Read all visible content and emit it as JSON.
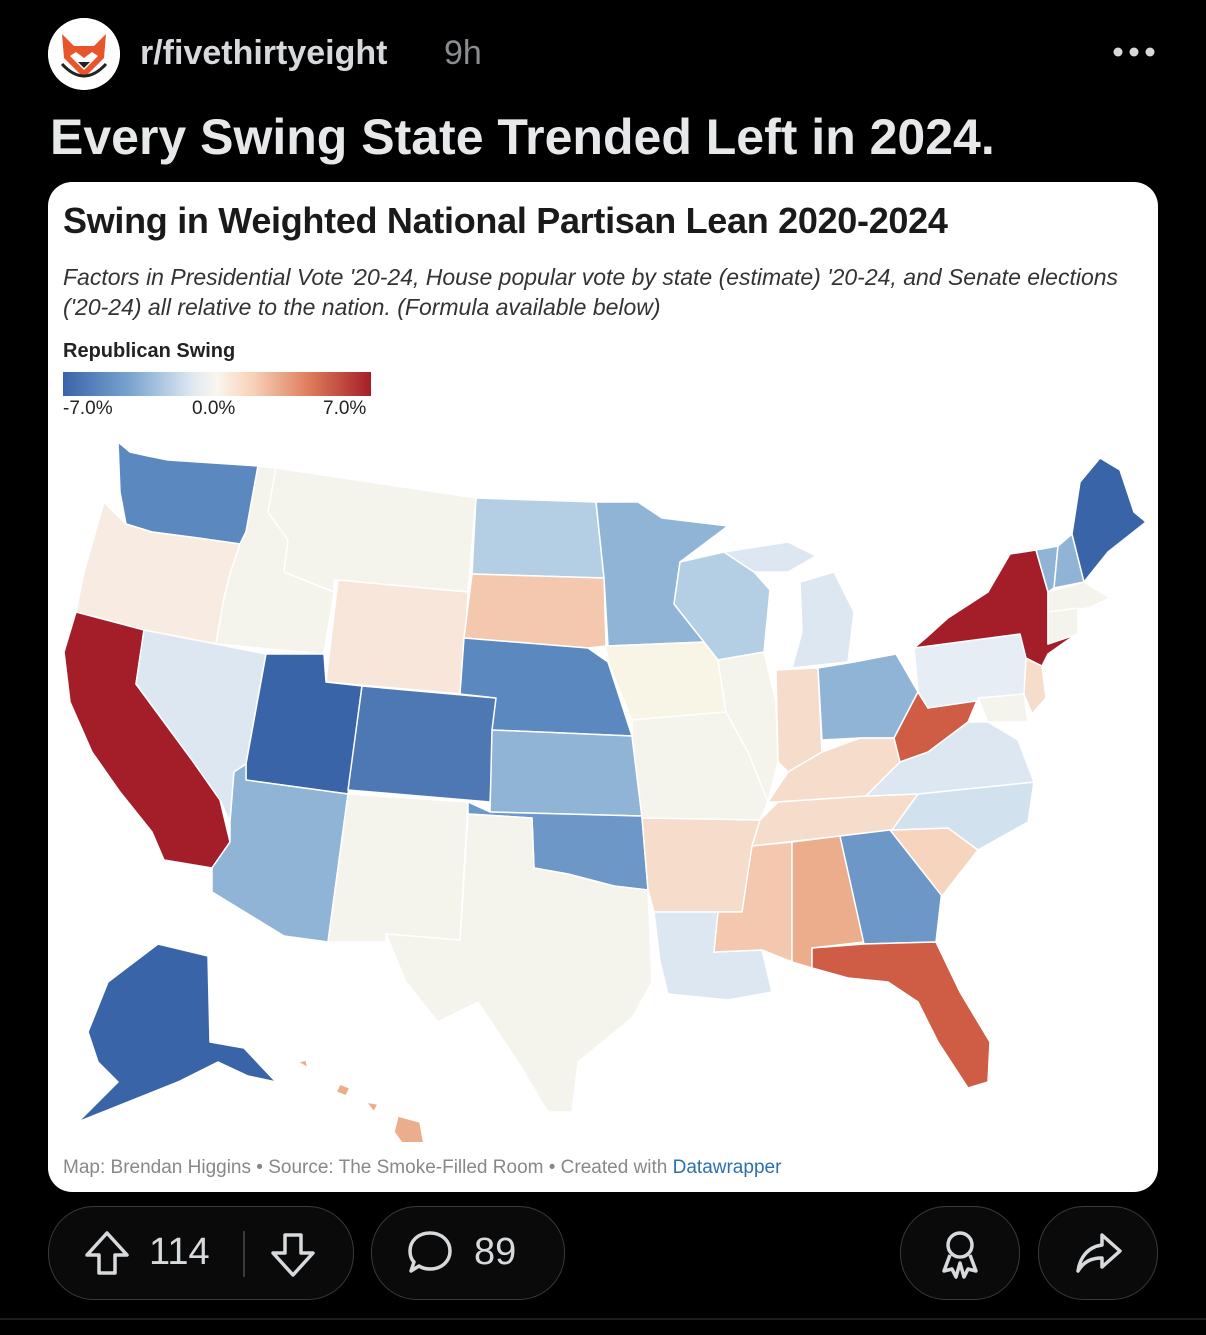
{
  "post": {
    "subreddit": "r/fivethirtyeight",
    "age": "9h",
    "title": "Every Swing State Trended Left in 2024.",
    "upvotes": "114",
    "comments": "89"
  },
  "chart": {
    "title": "Swing in Weighted National Partisan Lean 2020-2024",
    "subtitle": "Factors in Presidential Vote '20-24, House popular vote by state (estimate) '20-24, and Senate elections ('20-24) all relative to the nation. (Formula available below)",
    "legend_title": "Republican Swing",
    "legend_min": "-7.0%",
    "legend_mid": "0.0%",
    "legend_max": "7.0%",
    "footer_prefix": "Map: Brendan Higgins • Source: The Smoke-Filled Room • Created with ",
    "footer_link": "Datawrapper"
  },
  "colors": {
    "strong_blue": "#3a64a8",
    "mid_blue": "#5b88be",
    "light_blue": "#8fb4d6",
    "pale_blue": "#dce7f1",
    "neutral": "#f4f3ec",
    "pale_red": "#f6dccb",
    "light_red": "#ebad8c",
    "mid_red": "#d2624a",
    "strong_red": "#a41e2a"
  },
  "icons": {
    "avatar": "fox-avatar-icon",
    "more": "more-dots-icon",
    "upvote": "upvote-arrow-icon",
    "downvote": "downvote-arrow-icon",
    "comment": "comment-bubble-icon",
    "award": "award-icon",
    "share": "share-arrow-icon"
  }
}
